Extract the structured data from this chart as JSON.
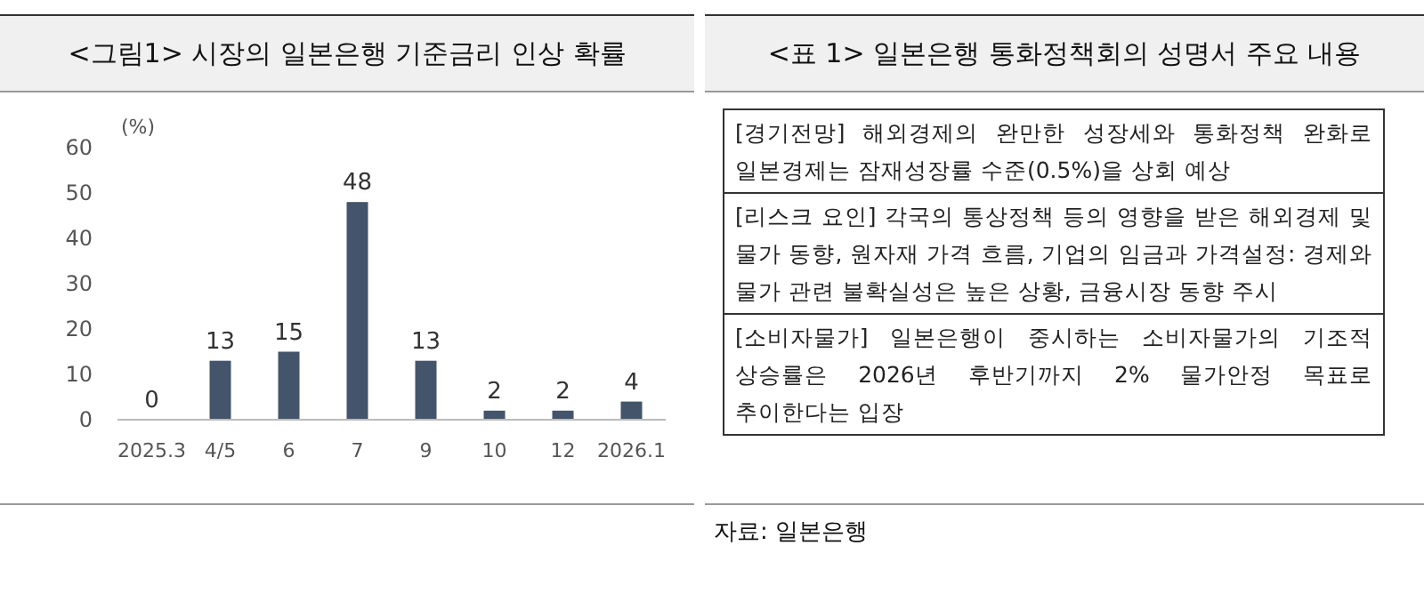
{
  "chart_data": [
    {
      "type": "bar",
      "title": "<그림1> 시장의 일본은행 기준금리 인상 확률",
      "ylabel": "(%)",
      "categories": [
        "2025.3",
        "4/5",
        "6",
        "7",
        "9",
        "10",
        "12",
        "2026.1"
      ],
      "values": [
        0,
        13,
        15,
        48,
        13,
        2,
        2,
        4
      ],
      "color": "#44546a",
      "ylim": [
        0,
        60
      ],
      "yticks": [
        0,
        10,
        20,
        30,
        40,
        50,
        60
      ],
      "data_labels": true,
      "grid": false
    },
    {
      "type": "other",
      "title": "<표 1> 일본은행 통화정책회의 성명서 주요 내용",
      "annotations": [
        "[경기전망] 해외경제의 완만한 성장세와 통화정책 완화로 일본경제는 잠재성장률 수준(0.5%)을 상회 예상",
        "[리스크 요인] 각국의 통상정책 등의 영향을 받은 해외경제 및 물가 동향, 원자재 가격 흐름, 기업의 임금과 가격설정: 경제와 물가 관련 불확실성은 높은 상황, 금융시장 동향 주시",
        "[소비자물가] 일본은행이 중시하는 소비자물가의 기조적 상승률은 2026년 후반기까지 2% 물가안정 목표로 추이한다는 입장",
        "자료: 일본은행"
      ]
    }
  ]
}
